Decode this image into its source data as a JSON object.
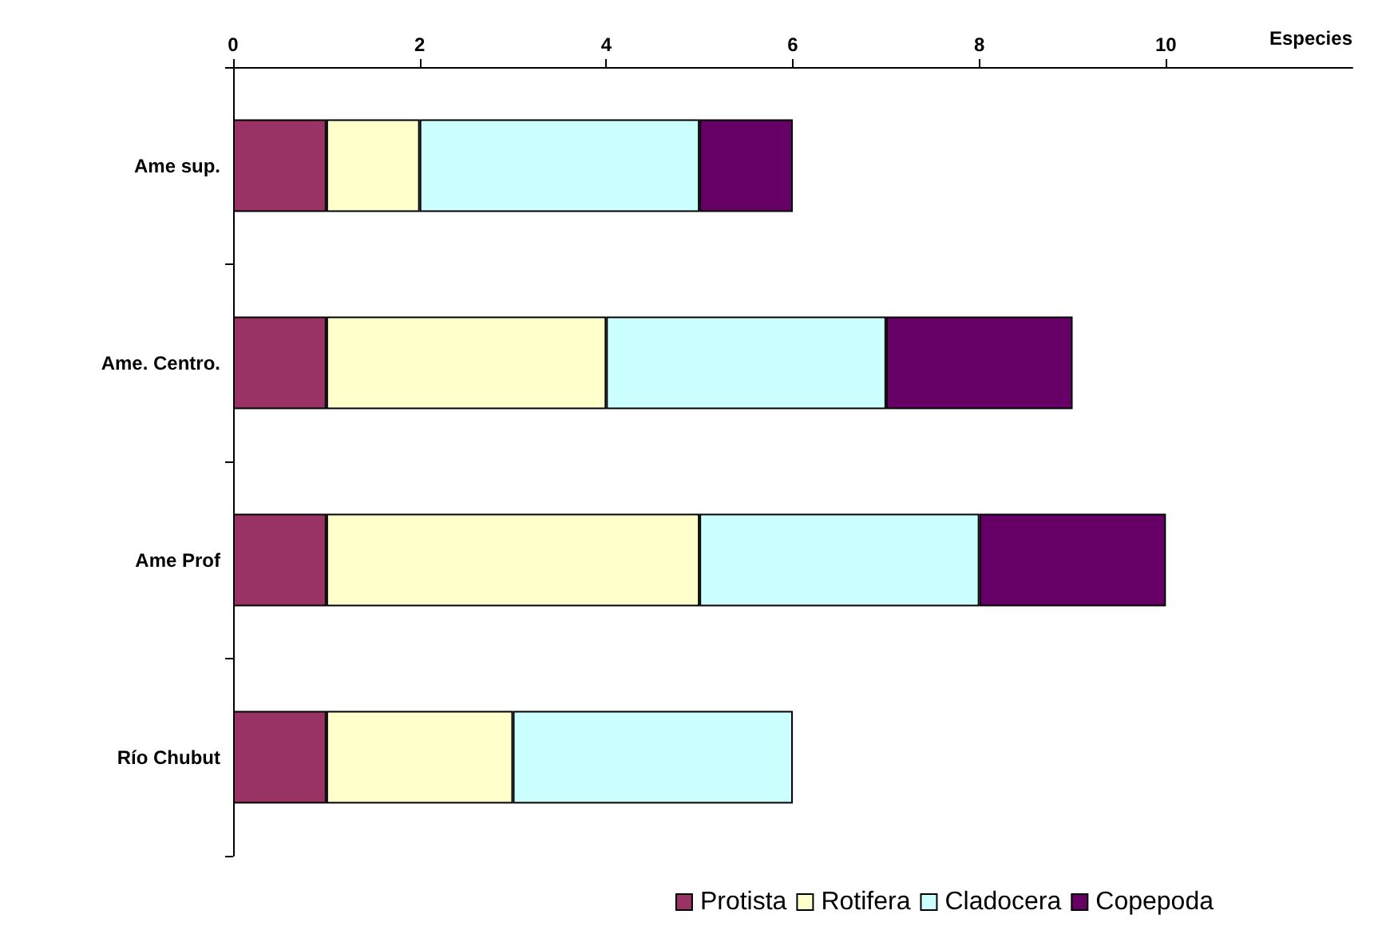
{
  "chart_data": {
    "type": "bar",
    "orientation": "horizontal",
    "stacked": true,
    "xlabel": "Especies",
    "categories": [
      "Ame sup.",
      "Ame. Centro.",
      "Ame Prof",
      "Río Chubut"
    ],
    "series": [
      {
        "name": "Protista",
        "color": "#993366",
        "values": [
          1,
          1,
          1,
          1
        ]
      },
      {
        "name": "Rotifera",
        "color": "#ffffcc",
        "values": [
          1,
          3,
          4,
          2
        ]
      },
      {
        "name": "Cladocera",
        "color": "#ccffff",
        "values": [
          3,
          3,
          3,
          3
        ]
      },
      {
        "name": "Copepoda",
        "color": "#660066",
        "values": [
          1,
          2,
          2,
          null
        ]
      }
    ],
    "xlim": [
      0,
      12
    ],
    "xticks": [
      0,
      2,
      4,
      6,
      8,
      10
    ],
    "grid": false,
    "legend": "bottom right"
  }
}
